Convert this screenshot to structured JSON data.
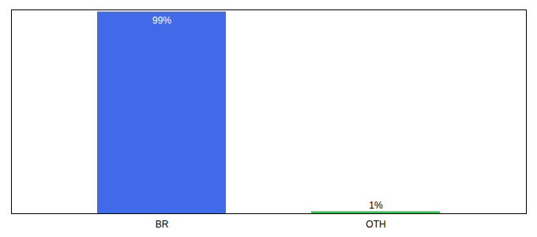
{
  "chart_data": {
    "type": "bar",
    "categories": [
      "BR",
      "OTH"
    ],
    "values": [
      99,
      1
    ],
    "colors": [
      "#4169e8",
      "#22cc44"
    ],
    "value_labels": [
      "99%",
      "1%"
    ],
    "data_labels": true,
    "ylim": [
      0,
      100
    ],
    "tick_labels": "x",
    "grid": false
  }
}
